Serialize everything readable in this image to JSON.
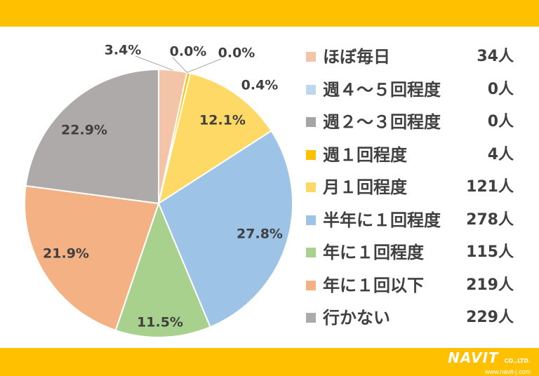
{
  "chart_data": {
    "type": "pie",
    "slices": [
      {
        "label": "ほぼ毎日",
        "count": "34人",
        "percent": "3.4%",
        "value": 3.4,
        "color": "#F4C4A8"
      },
      {
        "label": "週４～５回程度",
        "count": "0人",
        "percent": "0.0%",
        "value": 0.0,
        "color": "#BDD7EE"
      },
      {
        "label": "週２～３回程度",
        "count": "0人",
        "percent": "0.0%",
        "value": 0.0,
        "color": "#A5A5A5"
      },
      {
        "label": "週１回程度",
        "count": "4人",
        "percent": "0.4%",
        "value": 0.4,
        "color": "#FFC000"
      },
      {
        "label": "月１回程度",
        "count": "121人",
        "percent": "12.1%",
        "value": 12.1,
        "color": "#FFD966"
      },
      {
        "label": "半年に１回程度",
        "count": "278人",
        "percent": "27.8%",
        "value": 27.8,
        "color": "#9DC3E6"
      },
      {
        "label": "年に１回程度",
        "count": "115人",
        "percent": "11.5%",
        "value": 11.5,
        "color": "#A9D18E"
      },
      {
        "label": "年に１回以下",
        "count": "219人",
        "percent": "21.9%",
        "value": 21.9,
        "color": "#F4B183"
      },
      {
        "label": "行かない",
        "count": "229人",
        "percent": "22.9%",
        "value": 22.9,
        "color": "#AEAAAA"
      }
    ],
    "legend_position": "right"
  },
  "colors": {
    "band": "#FFC000",
    "text": "#404040"
  },
  "logo": {
    "name": "NAVIT",
    "suffix": "CO.,LTD.",
    "url": "www.navit-j.com"
  }
}
